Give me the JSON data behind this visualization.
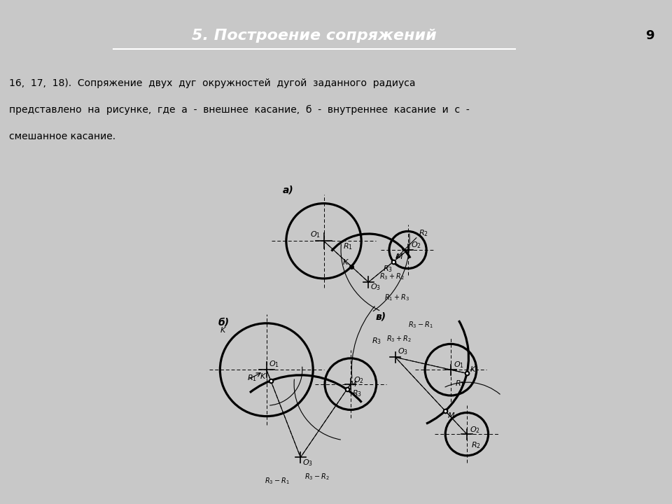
{
  "title": "5. Построение сопряжений",
  "title_color": "#FFFFFF",
  "title_bg": "#E8641E",
  "page_num": "9",
  "text_bg": "#D8F0F0",
  "body_text_line1": "16,  17,  18).  Сопряжение  двух  дуг  окружностей  дугой  заданного  радиуса",
  "body_text_line2": "представлено  на  рисунке,  где  а  -  внешнее  касание,  б  -  внутреннее  касание  и  с  -",
  "body_text_line3": "смешанное касание.",
  "drawing_bg": "#FFFFC0",
  "inner_bg": "#FFFFFF",
  "lw": 1.8,
  "thin_lw": 0.8
}
